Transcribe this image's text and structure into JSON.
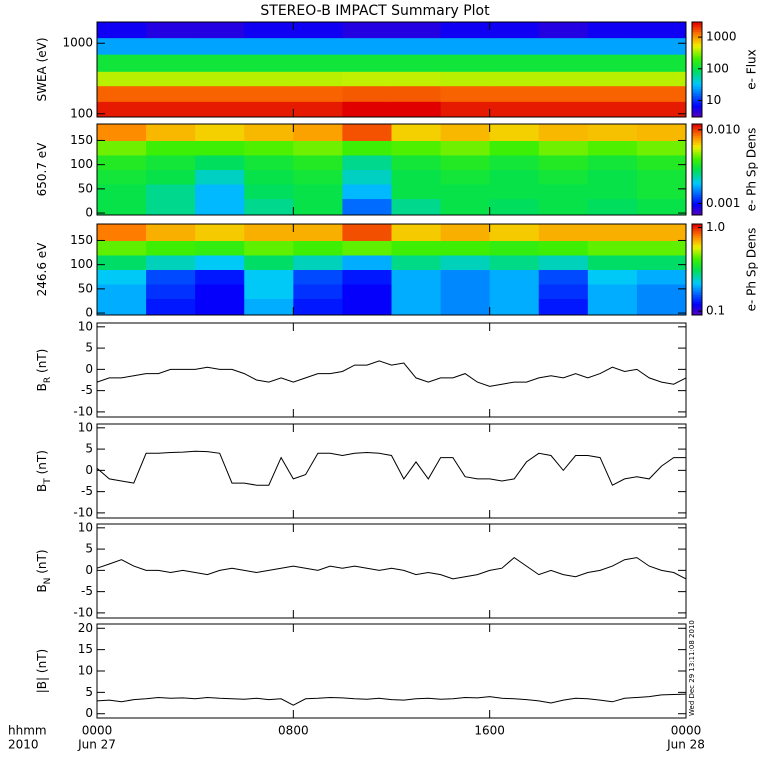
{
  "title": "STEREO-B IMPACT Summary Plot",
  "x_axis": {
    "label": "hhmm",
    "year": "2010",
    "xlim": [
      0,
      24
    ],
    "xticks": [
      {
        "value": 0,
        "label": "0000"
      },
      {
        "value": 8,
        "label": "0800"
      },
      {
        "value": 16,
        "label": "1600"
      },
      {
        "value": 24,
        "label": "0000"
      }
    ],
    "dates": [
      {
        "value": 0,
        "label": "Jun 27"
      },
      {
        "value": 24,
        "label": "Jun 28"
      }
    ]
  },
  "stamp": "Wed Dec 29 13:11:08 2010",
  "chart_data": [
    {
      "type": "heatmap",
      "ylabel": "SWEA (eV)",
      "ylog": true,
      "ylim": [
        90,
        2000
      ],
      "yticks": [
        100,
        1000
      ],
      "x_edges": [
        0,
        2,
        4,
        6,
        8,
        10,
        12,
        14,
        16,
        18,
        20,
        22,
        24
      ],
      "y_edges": [
        90,
        150,
        250,
        400,
        700,
        1200,
        2000
      ],
      "z": [
        [
          2500,
          2500,
          2500,
          2500,
          2500,
          3000,
          3000,
          2500,
          2500,
          2500,
          2500,
          2500
        ],
        [
          1500,
          1500,
          1500,
          1500,
          1500,
          1600,
          1600,
          1500,
          1500,
          1500,
          1500,
          1500
        ],
        [
          400,
          400,
          400,
          400,
          400,
          420,
          420,
          400,
          400,
          400,
          400,
          400
        ],
        [
          120,
          120,
          120,
          120,
          120,
          120,
          120,
          120,
          120,
          120,
          120,
          120
        ],
        [
          25,
          25,
          25,
          25,
          25,
          25,
          25,
          25,
          25,
          25,
          25,
          25
        ],
        [
          6,
          5,
          5,
          6,
          6,
          5,
          5,
          6,
          6,
          5,
          6,
          6
        ]
      ],
      "colorbar": {
        "label": "e- Flux",
        "log": true,
        "clim": [
          3,
          3000
        ],
        "ticks": [
          10,
          100,
          1000
        ]
      }
    },
    {
      "type": "heatmap",
      "ylabel": "650.7 eV",
      "ylog": false,
      "ylim": [
        -4,
        184
      ],
      "yticks": [
        0,
        50,
        100,
        150
      ],
      "x_edges": [
        0,
        2,
        4,
        6,
        8,
        10,
        12,
        14,
        16,
        18,
        20,
        22,
        24
      ],
      "y_edges": [
        -4,
        30,
        60,
        90,
        120,
        150,
        184
      ],
      "z": [
        [
          0.003,
          0.0025,
          0.0018,
          0.0025,
          0.003,
          0.0014,
          0.0025,
          0.003,
          0.0028,
          0.003,
          0.0028,
          0.003
        ],
        [
          0.003,
          0.0025,
          0.0018,
          0.0028,
          0.003,
          0.0018,
          0.003,
          0.003,
          0.003,
          0.003,
          0.003,
          0.0032
        ],
        [
          0.0032,
          0.003,
          0.0022,
          0.003,
          0.0032,
          0.0022,
          0.003,
          0.0032,
          0.003,
          0.0032,
          0.003,
          0.0032
        ],
        [
          0.0035,
          0.0032,
          0.0028,
          0.0032,
          0.0035,
          0.0025,
          0.0032,
          0.0035,
          0.0032,
          0.0035,
          0.0032,
          0.0035
        ],
        [
          0.0045,
          0.004,
          0.004,
          0.0042,
          0.0045,
          0.004,
          0.0042,
          0.0045,
          0.004,
          0.0045,
          0.0042,
          0.0045
        ],
        [
          0.008,
          0.007,
          0.0065,
          0.007,
          0.0075,
          0.0095,
          0.0065,
          0.007,
          0.0065,
          0.007,
          0.0068,
          0.007
        ]
      ],
      "colorbar": {
        "label": "e- Ph Sp Dens",
        "log": true,
        "clim": [
          0.0007,
          0.012
        ],
        "ticks": [
          0.001,
          {
            "value": 0.01,
            "label": "0.010"
          }
        ]
      }
    },
    {
      "type": "heatmap",
      "ylabel": "246.6 eV",
      "ylog": false,
      "ylim": [
        -4,
        184
      ],
      "yticks": [
        0,
        50,
        100,
        150
      ],
      "x_edges": [
        0,
        2,
        4,
        6,
        8,
        10,
        12,
        14,
        16,
        18,
        20,
        22,
        24
      ],
      "y_edges": [
        -4,
        30,
        60,
        90,
        120,
        150,
        184
      ],
      "z": [
        [
          0.2,
          0.13,
          0.12,
          0.2,
          0.13,
          0.12,
          0.2,
          0.18,
          0.2,
          0.13,
          0.2,
          0.18
        ],
        [
          0.2,
          0.14,
          0.12,
          0.22,
          0.14,
          0.12,
          0.2,
          0.18,
          0.2,
          0.14,
          0.2,
          0.18
        ],
        [
          0.22,
          0.15,
          0.13,
          0.22,
          0.15,
          0.13,
          0.2,
          0.18,
          0.2,
          0.15,
          0.22,
          0.2
        ],
        [
          0.3,
          0.25,
          0.22,
          0.3,
          0.25,
          0.2,
          0.28,
          0.25,
          0.28,
          0.25,
          0.3,
          0.3
        ],
        [
          0.45,
          0.42,
          0.4,
          0.45,
          0.42,
          0.45,
          0.42,
          0.42,
          0.4,
          0.42,
          0.45,
          0.45
        ],
        [
          0.8,
          0.7,
          0.65,
          0.7,
          0.7,
          0.9,
          0.65,
          0.7,
          0.65,
          0.7,
          0.7,
          0.7
        ]
      ],
      "colorbar": {
        "label": "e- Ph Sp Dens",
        "log": true,
        "clim": [
          0.09,
          1.1
        ],
        "ticks": [
          0.1,
          {
            "value": 1,
            "label": "1.0"
          }
        ]
      }
    },
    {
      "type": "line",
      "ylabel": "B",
      "ylabel_sub": "R",
      "ylabel_unit": "(nT)",
      "ylim": [
        -11.2,
        10.9
      ],
      "yticks": [
        -10,
        -5,
        0,
        5,
        10
      ],
      "color": "#000000",
      "x": [
        0,
        0.5,
        1,
        1.5,
        2,
        2.5,
        3,
        3.5,
        4,
        4.5,
        5,
        5.5,
        6,
        6.5,
        7,
        7.5,
        8,
        8.5,
        9,
        9.5,
        10,
        10.5,
        11,
        11.5,
        12,
        12.5,
        13,
        13.5,
        14,
        14.5,
        15,
        15.5,
        16,
        16.5,
        17,
        17.5,
        18,
        18.5,
        19,
        19.5,
        20,
        20.5,
        21,
        21.5,
        22,
        22.5,
        23,
        23.5,
        24
      ],
      "values": [
        -3,
        -2,
        -2,
        -1.5,
        -1,
        -1,
        0,
        0,
        0,
        0.5,
        0,
        0,
        -1,
        -2.5,
        -3,
        -2,
        -3,
        -2,
        -1,
        -1,
        -0.5,
        1,
        1,
        2,
        1,
        1.5,
        -2,
        -3,
        -2,
        -2,
        -1,
        -3,
        -4,
        -3.5,
        -3,
        -3,
        -2,
        -1.5,
        -2,
        -1,
        -2,
        -1,
        0.5,
        -0.5,
        0,
        -2,
        -3,
        -3.5,
        -2
      ]
    },
    {
      "type": "line",
      "ylabel": "B",
      "ylabel_sub": "T",
      "ylabel_unit": "(nT)",
      "ylim": [
        -11.2,
        10.9
      ],
      "yticks": [
        -10,
        -5,
        0,
        5,
        10
      ],
      "color": "#000000",
      "x": [
        0,
        0.5,
        1,
        1.5,
        2,
        2.5,
        3,
        3.5,
        4,
        4.5,
        5,
        5.5,
        6,
        6.5,
        7,
        7.5,
        8,
        8.5,
        9,
        9.5,
        10,
        10.5,
        11,
        11.5,
        12,
        12.5,
        13,
        13.5,
        14,
        14.5,
        15,
        15.5,
        16,
        16.5,
        17,
        17.5,
        18,
        18.5,
        19,
        19.5,
        20,
        20.5,
        21,
        21.5,
        22,
        22.5,
        23,
        23.5,
        24
      ],
      "values": [
        0.5,
        -2,
        -2.5,
        -3,
        4,
        4,
        4.2,
        4.3,
        4.5,
        4.4,
        4,
        -3,
        -3,
        -3.5,
        -3.5,
        3,
        -2,
        -1,
        4,
        4,
        3.5,
        4,
        4.2,
        4,
        3.5,
        -2,
        2,
        -2,
        3,
        3,
        -1.5,
        -2,
        -2,
        -2.5,
        -2,
        2,
        4,
        3.5,
        0,
        3.5,
        3.5,
        3,
        -3.5,
        -2,
        -1.5,
        -2,
        1,
        3,
        3
      ]
    },
    {
      "type": "line",
      "ylabel": "B",
      "ylabel_sub": "N",
      "ylabel_unit": "(nT)",
      "ylim": [
        -11.2,
        10.9
      ],
      "yticks": [
        -10,
        -5,
        0,
        5,
        10
      ],
      "color": "#000000",
      "x": [
        0,
        0.5,
        1,
        1.5,
        2,
        2.5,
        3,
        3.5,
        4,
        4.5,
        5,
        5.5,
        6,
        6.5,
        7,
        7.5,
        8,
        8.5,
        9,
        9.5,
        10,
        10.5,
        11,
        11.5,
        12,
        12.5,
        13,
        13.5,
        14,
        14.5,
        15,
        15.5,
        16,
        16.5,
        17,
        17.5,
        18,
        18.5,
        19,
        19.5,
        20,
        20.5,
        21,
        21.5,
        22,
        22.5,
        23,
        23.5,
        24
      ],
      "values": [
        0.5,
        1.5,
        2.5,
        1,
        0,
        0,
        -0.5,
        0,
        -0.5,
        -1,
        0,
        0.5,
        0,
        -0.5,
        0,
        0.5,
        1,
        0.5,
        0,
        1,
        0.5,
        1,
        0.5,
        0,
        0.5,
        0,
        -1,
        -0.5,
        -1,
        -2,
        -1.5,
        -1,
        0,
        0.5,
        3,
        1,
        -1,
        0,
        -1,
        -1.5,
        -0.5,
        0,
        1,
        2.5,
        3,
        1,
        0,
        -0.5,
        -2
      ]
    },
    {
      "type": "line",
      "ylabel": "|B|",
      "ylabel_unit": "(nT)",
      "ylim": [
        -1,
        21
      ],
      "yticks": [
        0,
        5,
        10,
        15,
        20
      ],
      "color": "#000000",
      "x": [
        0,
        0.5,
        1,
        1.5,
        2,
        2.5,
        3,
        3.5,
        4,
        4.5,
        5,
        5.5,
        6,
        6.5,
        7,
        7.5,
        8,
        8.5,
        9,
        9.5,
        10,
        10.5,
        11,
        11.5,
        12,
        12.5,
        13,
        13.5,
        14,
        14.5,
        15,
        15.5,
        16,
        16.5,
        17,
        17.5,
        18,
        18.5,
        19,
        19.5,
        20,
        20.5,
        21,
        21.5,
        22,
        22.5,
        23,
        23.5,
        24
      ],
      "values": [
        3.0,
        3.2,
        2.8,
        3.3,
        3.5,
        3.8,
        3.6,
        3.7,
        3.5,
        3.8,
        3.6,
        3.5,
        3.4,
        3.6,
        3.3,
        3.5,
        2.0,
        3.5,
        3.6,
        3.8,
        3.7,
        3.5,
        3.4,
        3.6,
        3.3,
        3.2,
        3.5,
        3.6,
        3.4,
        3.5,
        3.8,
        3.7,
        4.0,
        3.6,
        3.5,
        3.3,
        3.0,
        2.5,
        3.2,
        3.6,
        3.5,
        3.2,
        2.8,
        3.6,
        3.8,
        4.0,
        4.4,
        4.5,
        4.6
      ]
    }
  ]
}
